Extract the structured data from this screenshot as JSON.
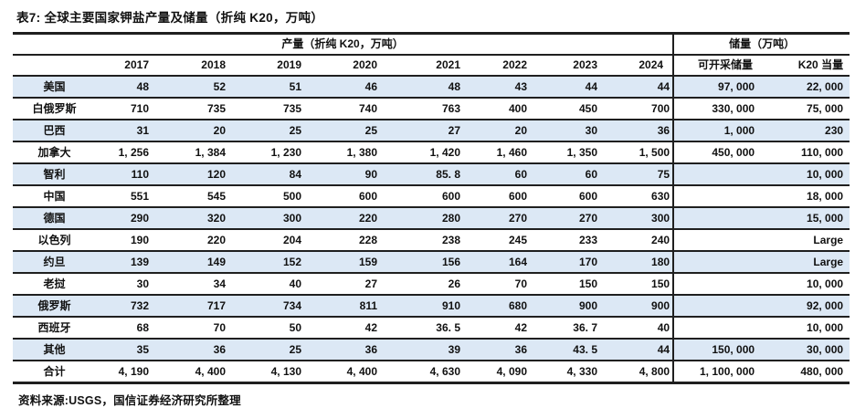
{
  "title": "表7: 全球主要国家钾盐产量及储量（折纯 K20，万吨）",
  "source_note": "资料来源:USGS，国信证券经济研究所整理",
  "colors": {
    "alt_row": "#dce8f5",
    "border": "#1f1f1f",
    "text": "#111111",
    "background": "#ffffff"
  },
  "chart_data": {
    "type": "table",
    "title": "表7: 全球主要国家钾盐产量及储量（折纯 K20，万吨）",
    "production_header": "产量（折纯 K20，万吨）",
    "reserves_header": "储量（万吨）",
    "year_columns": [
      "2017",
      "2018",
      "2019",
      "2020",
      "2021",
      "2022",
      "2023",
      "2024"
    ],
    "reserve_columns": [
      "可开采储量",
      "K20 当量"
    ],
    "rows": [
      {
        "country": "美国",
        "production": [
          "48",
          "52",
          "51",
          "46",
          "48",
          "43",
          "44",
          "44"
        ],
        "reserves": [
          "97, 000",
          "22, 000"
        ]
      },
      {
        "country": "白俄罗斯",
        "production": [
          "710",
          "735",
          "735",
          "740",
          "763",
          "400",
          "450",
          "700"
        ],
        "reserves": [
          "330, 000",
          "75, 000"
        ]
      },
      {
        "country": "巴西",
        "production": [
          "31",
          "20",
          "25",
          "25",
          "27",
          "20",
          "30",
          "36"
        ],
        "reserves": [
          "1, 000",
          "230"
        ]
      },
      {
        "country": "加拿大",
        "production": [
          "1, 256",
          "1, 384",
          "1, 230",
          "1, 380",
          "1, 420",
          "1, 460",
          "1, 350",
          "1, 500"
        ],
        "reserves": [
          "450, 000",
          "110, 000"
        ]
      },
      {
        "country": "智利",
        "production": [
          "110",
          "120",
          "84",
          "90",
          "85. 8",
          "60",
          "60",
          "75"
        ],
        "reserves": [
          "",
          "10, 000"
        ]
      },
      {
        "country": "中国",
        "production": [
          "551",
          "545",
          "500",
          "600",
          "600",
          "600",
          "600",
          "630"
        ],
        "reserves": [
          "",
          "18, 000"
        ]
      },
      {
        "country": "德国",
        "production": [
          "290",
          "320",
          "300",
          "220",
          "280",
          "270",
          "270",
          "300"
        ],
        "reserves": [
          "",
          "15, 000"
        ]
      },
      {
        "country": "以色列",
        "production": [
          "190",
          "220",
          "204",
          "228",
          "238",
          "245",
          "233",
          "240"
        ],
        "reserves": [
          "",
          "Large"
        ]
      },
      {
        "country": "约旦",
        "production": [
          "139",
          "149",
          "152",
          "159",
          "156",
          "164",
          "170",
          "180"
        ],
        "reserves": [
          "",
          "Large"
        ]
      },
      {
        "country": "老挝",
        "production": [
          "30",
          "34",
          "40",
          "27",
          "26",
          "70",
          "150",
          "150"
        ],
        "reserves": [
          "",
          "10, 000"
        ]
      },
      {
        "country": "俄罗斯",
        "production": [
          "732",
          "717",
          "734",
          "811",
          "910",
          "680",
          "900",
          "900"
        ],
        "reserves": [
          "",
          "92, 000"
        ]
      },
      {
        "country": "西班牙",
        "production": [
          "68",
          "70",
          "50",
          "42",
          "36. 5",
          "42",
          "36. 7",
          "40"
        ],
        "reserves": [
          "",
          "10, 000"
        ]
      },
      {
        "country": "其他",
        "production": [
          "35",
          "36",
          "25",
          "36",
          "39",
          "36",
          "43. 5",
          "44"
        ],
        "reserves": [
          "150, 000",
          "30, 000"
        ]
      },
      {
        "country": "合计",
        "production": [
          "4, 190",
          "4, 400",
          "4, 130",
          "4, 400",
          "4, 630",
          "4, 090",
          "4, 330",
          "4, 800"
        ],
        "reserves": [
          "1, 100, 000",
          "480, 000"
        ]
      }
    ]
  }
}
